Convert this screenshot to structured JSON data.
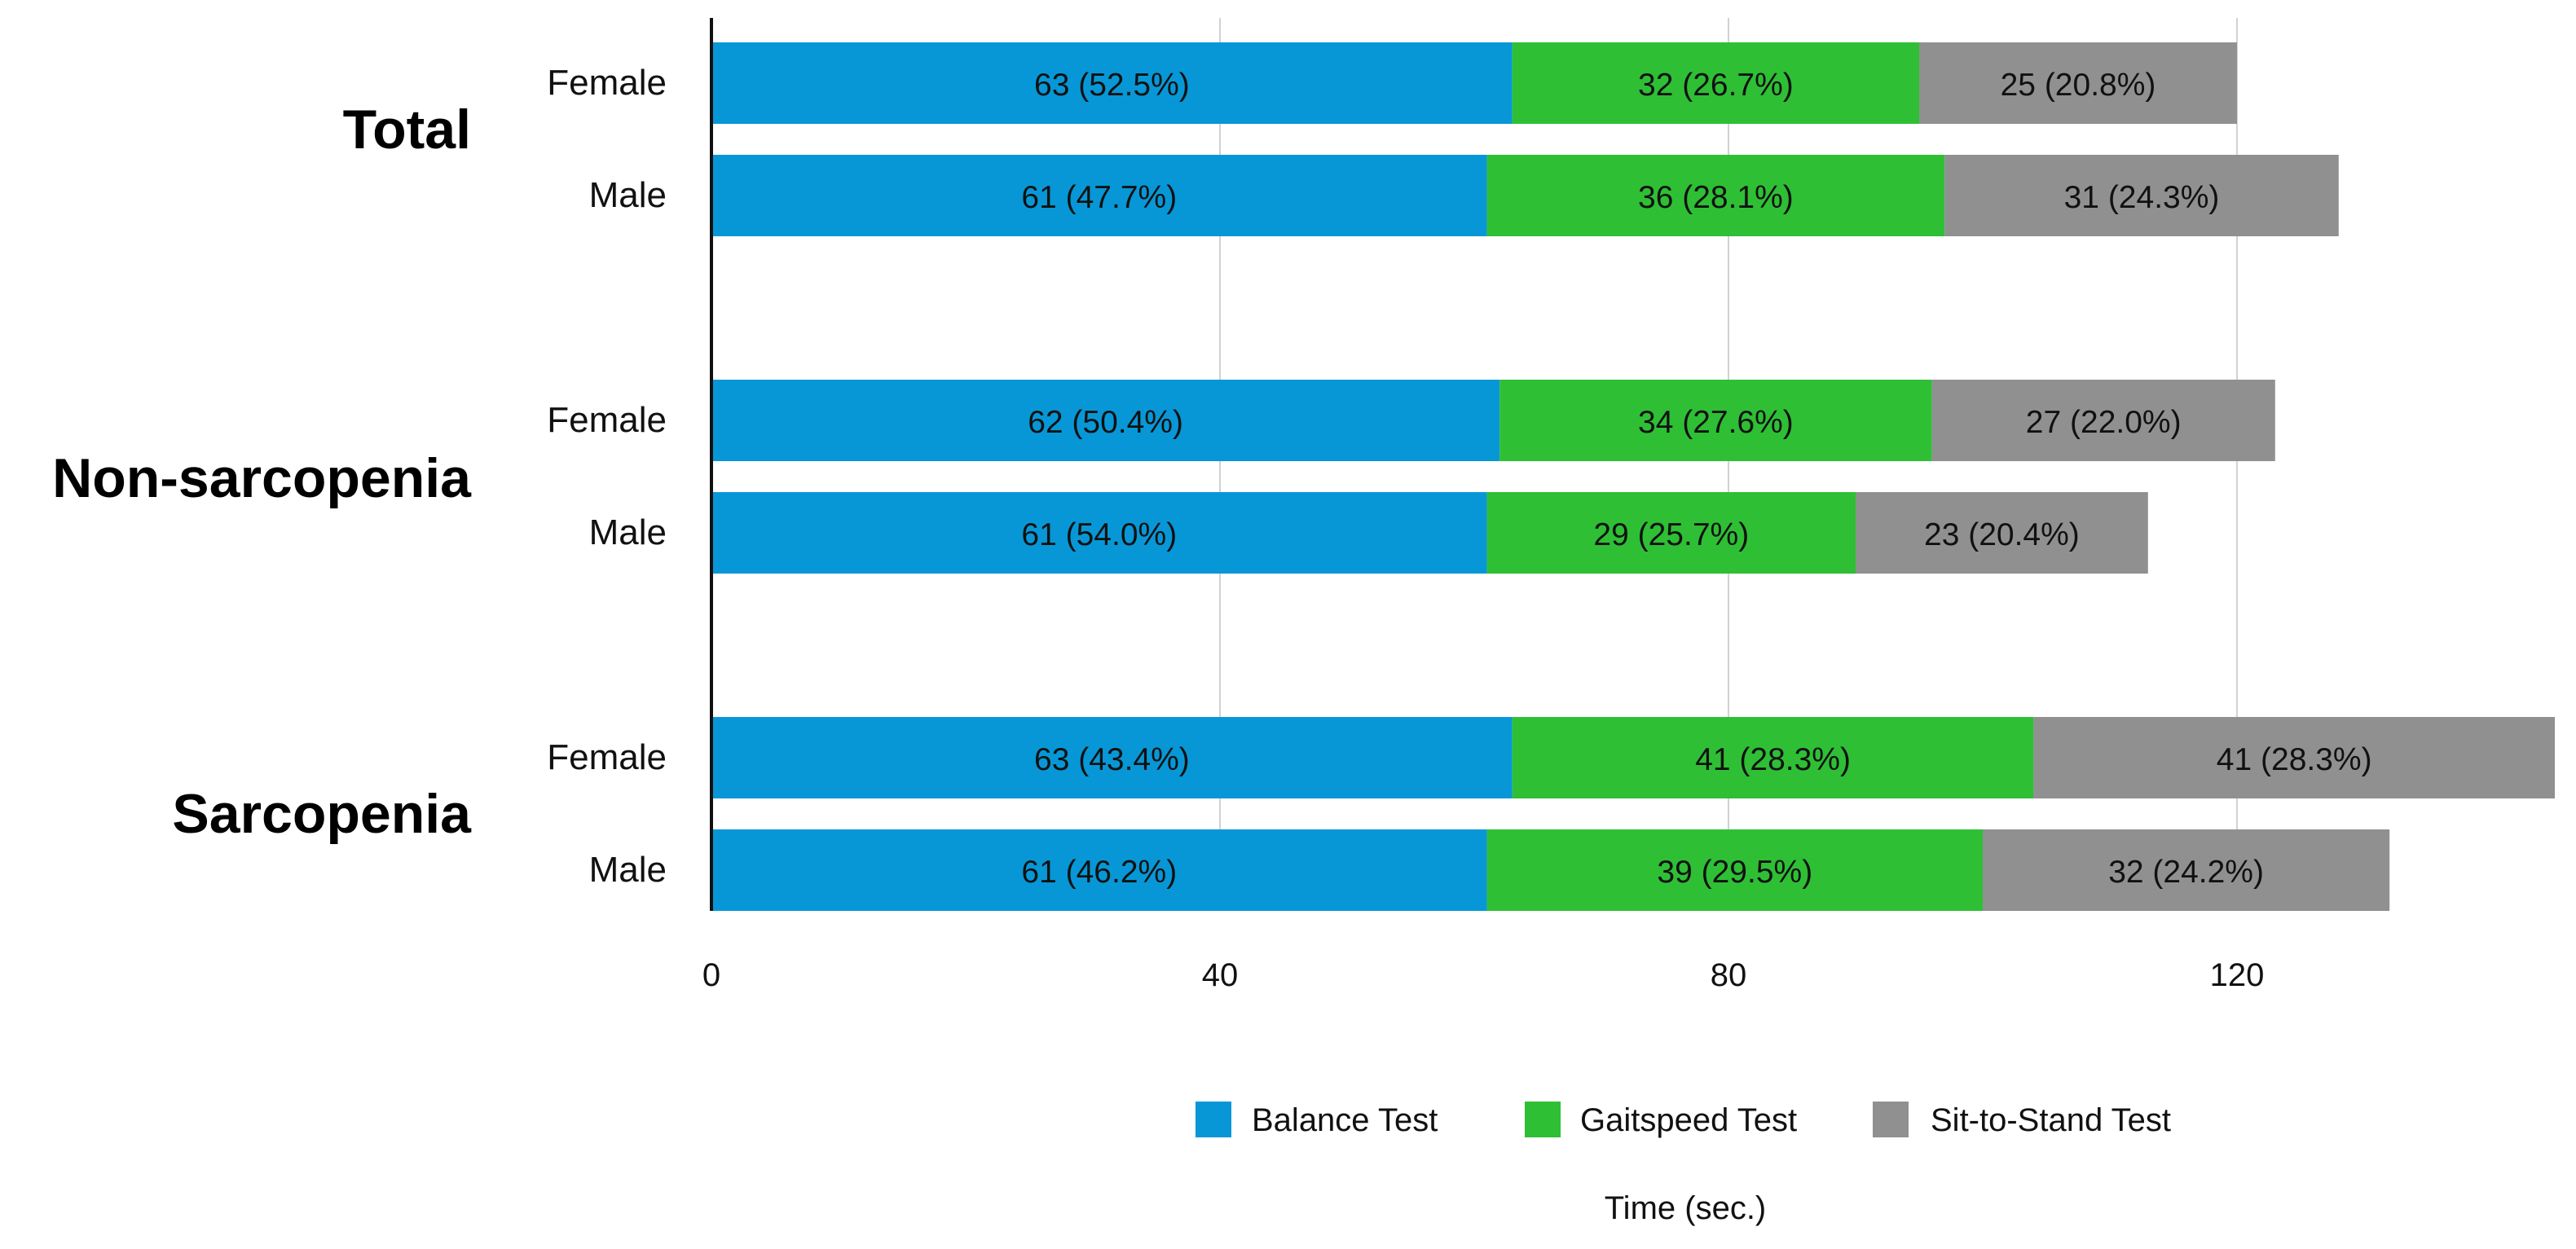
{
  "chart_data": {
    "type": "bar",
    "orientation": "horizontal",
    "stacked": true,
    "groups": [
      {
        "name": "Total",
        "rows": [
          {
            "label": "Female",
            "values": [
              63,
              32,
              25
            ],
            "labels": [
              "63 (52.5%)",
              "32 (26.7%)",
              "25 (20.8%)"
            ]
          },
          {
            "label": "Male",
            "values": [
              61,
              36,
              31
            ],
            "labels": [
              "61 (47.7%)",
              "36 (28.1%)",
              "31 (24.3%)"
            ]
          }
        ]
      },
      {
        "name": "Non-sarcopenia",
        "rows": [
          {
            "label": "Female",
            "values": [
              62,
              34,
              27
            ],
            "labels": [
              "62 (50.4%)",
              "34 (27.6%)",
              "27 (22.0%)"
            ]
          },
          {
            "label": "Male",
            "values": [
              61,
              29,
              23
            ],
            "labels": [
              "61 (54.0%)",
              "29 (25.7%)",
              "23 (20.4%)"
            ]
          }
        ]
      },
      {
        "name": "Sarcopenia",
        "rows": [
          {
            "label": "Female",
            "values": [
              63,
              41,
              41
            ],
            "labels": [
              "63 (43.4%)",
              "41 (28.3%)",
              "41 (28.3%)"
            ]
          },
          {
            "label": "Male",
            "values": [
              61,
              39,
              32
            ],
            "labels": [
              "61 (46.2%)",
              "39 (29.5%)",
              "32 (24.2%)"
            ]
          }
        ]
      }
    ],
    "series": [
      {
        "name": "Balance Test",
        "color": "#0797d6"
      },
      {
        "name": "Gaitspeed Test",
        "color": "#2ebf35"
      },
      {
        "name": "Sit-to-Stand Test",
        "color": "#8f908f"
      }
    ],
    "xlabel": "Time (sec.)",
    "xlim": [
      0,
      145
    ],
    "xticks": [
      0,
      40,
      80,
      120
    ],
    "grid": true,
    "legend_position": "bottom"
  }
}
